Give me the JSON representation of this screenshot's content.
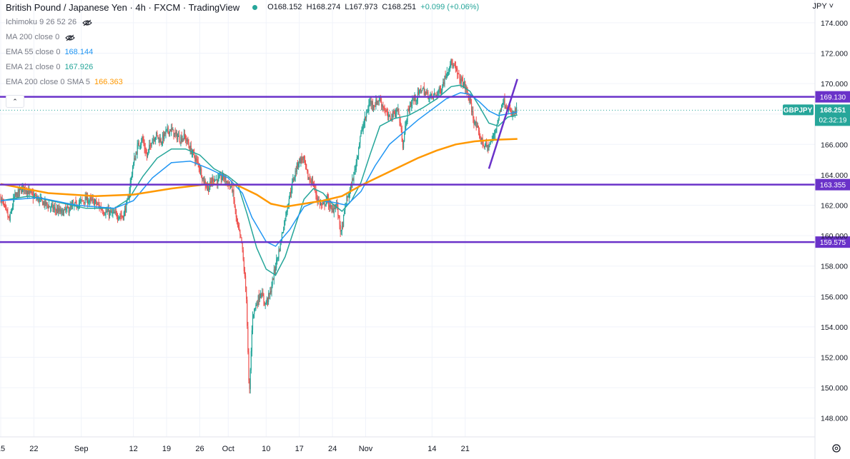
{
  "header": {
    "title": "British Pound / Japanese Yen · 4h · FXCM · TradingView",
    "open": "O168.152",
    "high": "H168.274",
    "low": "L167.973",
    "close": "C168.251",
    "change": "+0.099 (+0.06%)"
  },
  "indicators": [
    {
      "label": "Ichimoku 9 26 52 26",
      "value": "",
      "color": "#787b86",
      "hidden": true
    },
    {
      "label": "MA 200 close 0",
      "value": "",
      "color": "#787b86",
      "hidden": true
    },
    {
      "label": "EMA 55 close 0",
      "value": "168.144",
      "color": "#2196f3",
      "hidden": false
    },
    {
      "label": "EMA 21 close 0",
      "value": "167.926",
      "color": "#26a69a",
      "hidden": false
    },
    {
      "label": "EMA 200 close 0 SMA 5",
      "value": "166.363",
      "color": "#ff9800",
      "hidden": false
    }
  ],
  "currency_label": "JPY",
  "symbol_badge": "GBPJPY",
  "price_badge": "168.251",
  "countdown": "02:32:19",
  "colors": {
    "up": "#26a69a",
    "down": "#ef5350",
    "ema21": "#26a69a",
    "ema55": "#2196f3",
    "ema200": "#ff9800",
    "levels": "#6a32c9"
  },
  "chart_data": {
    "type": "candlestick",
    "title": "British Pound / Japanese Yen · 4h · FXCM",
    "y_axis": {
      "ticks": [
        148,
        150,
        152,
        154,
        156,
        158,
        160,
        162,
        164,
        166,
        168,
        170,
        172,
        174
      ],
      "tick_labels": [
        "148.000",
        "150.000",
        "152.000",
        "154.000",
        "156.000",
        "158.000",
        "160.000",
        "162.000",
        "164.000",
        "166.000",
        "168.000",
        "170.000",
        "172.000",
        "174.000"
      ],
      "range": [
        147.0,
        174.8
      ]
    },
    "x_axis": {
      "tick_labels": [
        "15",
        "22",
        "Sep",
        "12",
        "19",
        "26",
        "Oct",
        "10",
        "17",
        "24",
        "Nov",
        "14",
        "21"
      ],
      "range": [
        "Aug 15",
        "Nov 28"
      ]
    },
    "horizontal_levels": [
      {
        "value": 169.13,
        "label": "169.130"
      },
      {
        "value": 163.355,
        "label": "163.355"
      },
      {
        "value": 159.575,
        "label": "159.575"
      }
    ],
    "trendline": {
      "from": [
        103.0,
        164.4
      ],
      "to": [
        109.0,
        170.3
      ]
    },
    "last_price": 168.251,
    "last_price_day": 108.5,
    "price_path": [
      [
        0,
        162.6
      ],
      [
        2,
        161.0
      ],
      [
        3,
        162.5
      ],
      [
        5,
        163.2
      ],
      [
        7,
        162.6
      ],
      [
        10,
        162.0
      ],
      [
        13,
        161.5
      ],
      [
        16,
        162.0
      ],
      [
        18,
        162.4
      ],
      [
        20,
        162.2
      ],
      [
        22,
        161.6
      ],
      [
        24,
        161.4
      ],
      [
        26,
        161.3
      ],
      [
        27,
        162.3
      ],
      [
        28,
        164.5
      ],
      [
        29,
        165.8
      ],
      [
        30,
        166.4
      ],
      [
        31,
        165.2
      ],
      [
        32,
        166.3
      ],
      [
        33,
        166.6
      ],
      [
        34,
        166.2
      ],
      [
        35,
        166.8
      ],
      [
        36,
        167.0
      ],
      [
        37,
        166.6
      ],
      [
        38,
        166.4
      ],
      [
        39,
        166.5
      ],
      [
        40,
        165.8
      ],
      [
        41,
        165.2
      ],
      [
        42,
        164.6
      ],
      [
        43,
        163.6
      ],
      [
        44,
        163.1
      ],
      [
        45,
        163.8
      ],
      [
        46,
        163.6
      ],
      [
        47,
        163.9
      ],
      [
        48,
        163.5
      ],
      [
        49,
        163.1
      ],
      [
        50,
        160.8
      ],
      [
        51,
        159.5
      ],
      [
        52,
        156.0
      ],
      [
        52.6,
        149.2
      ],
      [
        53.3,
        154.8
      ],
      [
        54,
        155.4
      ],
      [
        55,
        156.3
      ],
      [
        56,
        155.5
      ],
      [
        57,
        156.2
      ],
      [
        58,
        157.8
      ],
      [
        59,
        159.2
      ],
      [
        60,
        160.9
      ],
      [
        61,
        162.5
      ],
      [
        62,
        163.8
      ],
      [
        63,
        164.9
      ],
      [
        64,
        165.1
      ],
      [
        65,
        163.8
      ],
      [
        66,
        163.5
      ],
      [
        67,
        162.4
      ],
      [
        68,
        161.9
      ],
      [
        69,
        162.4
      ],
      [
        70,
        161.6
      ],
      [
        71,
        162.1
      ],
      [
        72,
        160.1
      ],
      [
        73,
        162.2
      ],
      [
        74,
        163.1
      ],
      [
        75,
        164.5
      ],
      [
        76,
        166.5
      ],
      [
        77,
        167.6
      ],
      [
        78,
        168.8
      ],
      [
        79,
        168.6
      ],
      [
        80,
        169.0
      ],
      [
        81,
        168.4
      ],
      [
        82,
        167.7
      ],
      [
        83,
        168.0
      ],
      [
        84,
        168.3
      ],
      [
        85,
        166.0
      ],
      [
        86,
        168.1
      ],
      [
        87,
        168.9
      ],
      [
        88,
        169.1
      ],
      [
        89,
        169.7
      ],
      [
        90,
        169.3
      ],
      [
        91,
        169.1
      ],
      [
        92,
        169.3
      ],
      [
        93,
        169.6
      ],
      [
        94,
        170.5
      ],
      [
        95,
        171.4
      ],
      [
        96,
        171.0
      ],
      [
        97,
        170.3
      ],
      [
        98,
        169.9
      ],
      [
        99,
        169.0
      ],
      [
        100,
        167.6
      ],
      [
        101,
        166.7
      ],
      [
        102,
        166.0
      ],
      [
        103,
        165.8
      ],
      [
        104,
        166.4
      ],
      [
        105,
        167.5
      ],
      [
        106,
        168.9
      ],
      [
        107,
        168.5
      ],
      [
        108,
        167.9
      ],
      [
        109,
        168.25
      ]
    ],
    "series": [
      {
        "name": "EMA 21 close 0",
        "value": 167.926,
        "color": "#26a69a",
        "points": [
          [
            0,
            162.3
          ],
          [
            6,
            162.6
          ],
          [
            12,
            162.2
          ],
          [
            18,
            161.8
          ],
          [
            24,
            161.8
          ],
          [
            27,
            162.4
          ],
          [
            30,
            163.9
          ],
          [
            33,
            165.1
          ],
          [
            36,
            165.7
          ],
          [
            39,
            165.7
          ],
          [
            42,
            165.3
          ],
          [
            45,
            164.4
          ],
          [
            48,
            163.9
          ],
          [
            50,
            163.4
          ],
          [
            52,
            161.4
          ],
          [
            54,
            159.2
          ],
          [
            56,
            157.8
          ],
          [
            58,
            157.4
          ],
          [
            60,
            158.6
          ],
          [
            62,
            160.5
          ],
          [
            64,
            162.4
          ],
          [
            66,
            163.1
          ],
          [
            68,
            162.8
          ],
          [
            70,
            162.1
          ],
          [
            72,
            161.6
          ],
          [
            74,
            162.3
          ],
          [
            76,
            163.5
          ],
          [
            78,
            165.4
          ],
          [
            80,
            167.2
          ],
          [
            83,
            167.7
          ],
          [
            86,
            167.9
          ],
          [
            89,
            168.4
          ],
          [
            92,
            169.0
          ],
          [
            95,
            169.8
          ],
          [
            97,
            169.9
          ],
          [
            99,
            169.5
          ],
          [
            101,
            168.5
          ],
          [
            103,
            167.4
          ],
          [
            105,
            167.2
          ],
          [
            107,
            167.8
          ],
          [
            109,
            167.93
          ]
        ]
      },
      {
        "name": "EMA 55 close 0",
        "value": 168.144,
        "color": "#2196f3",
        "points": [
          [
            0,
            162.3
          ],
          [
            8,
            162.5
          ],
          [
            16,
            162.0
          ],
          [
            24,
            161.8
          ],
          [
            28,
            162.3
          ],
          [
            32,
            163.8
          ],
          [
            36,
            164.8
          ],
          [
            40,
            164.9
          ],
          [
            44,
            164.4
          ],
          [
            48,
            163.8
          ],
          [
            51,
            162.8
          ],
          [
            53,
            161.2
          ],
          [
            56,
            159.6
          ],
          [
            58,
            159.3
          ],
          [
            61,
            160.4
          ],
          [
            64,
            161.9
          ],
          [
            67,
            162.3
          ],
          [
            70,
            162.2
          ],
          [
            73,
            162.0
          ],
          [
            76,
            162.9
          ],
          [
            79,
            164.6
          ],
          [
            82,
            166.0
          ],
          [
            85,
            166.8
          ],
          [
            88,
            167.6
          ],
          [
            91,
            168.3
          ],
          [
            94,
            169.0
          ],
          [
            97,
            169.4
          ],
          [
            99,
            169.3
          ],
          [
            101,
            168.8
          ],
          [
            103,
            168.2
          ],
          [
            105,
            167.9
          ],
          [
            107,
            168.0
          ],
          [
            109,
            168.14
          ]
        ]
      },
      {
        "name": "EMA 200 close 0 SMA 5",
        "value": 166.363,
        "color": "#ff9800",
        "points": [
          [
            0,
            163.4
          ],
          [
            10,
            162.8
          ],
          [
            20,
            162.6
          ],
          [
            28,
            162.7
          ],
          [
            36,
            163.1
          ],
          [
            44,
            163.4
          ],
          [
            50,
            163.3
          ],
          [
            54,
            162.7
          ],
          [
            57,
            162.1
          ],
          [
            60,
            161.9
          ],
          [
            64,
            162.1
          ],
          [
            68,
            162.3
          ],
          [
            72,
            162.6
          ],
          [
            76,
            163.3
          ],
          [
            80,
            163.9
          ],
          [
            84,
            164.5
          ],
          [
            88,
            165.1
          ],
          [
            92,
            165.6
          ],
          [
            96,
            166.0
          ],
          [
            100,
            166.2
          ],
          [
            104,
            166.3
          ],
          [
            109,
            166.363
          ]
        ]
      }
    ]
  }
}
